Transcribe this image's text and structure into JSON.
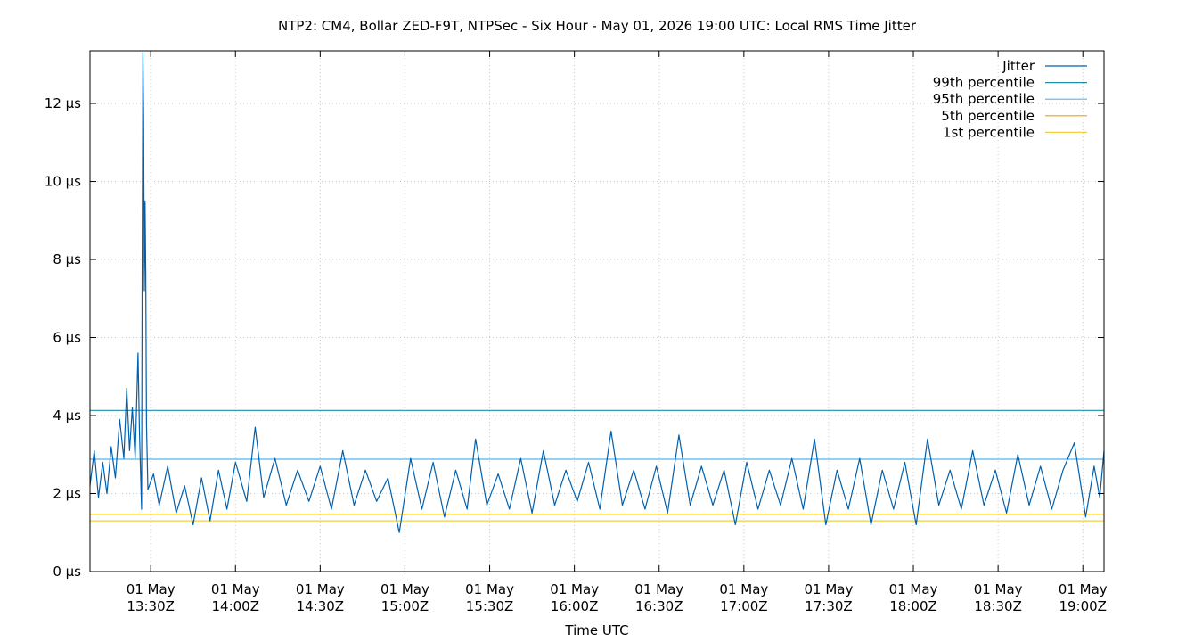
{
  "chart_data": {
    "type": "line",
    "title": "NTP2: CM4, Bollar ZED-F9T, NTPSec - Six Hour - May 01, 2026 19:00 UTC: Local RMS Time Jitter",
    "xlabel": "Time UTC",
    "ylabel": "",
    "x_range": [
      "2026-05-01T13:08:30Z",
      "2026-05-01T19:07:30Z"
    ],
    "ylim": [
      0,
      13.35
    ],
    "y_ticks": [
      {
        "value": 0,
        "label": "0 µs"
      },
      {
        "value": 2,
        "label": "2 µs"
      },
      {
        "value": 4,
        "label": "4 µs"
      },
      {
        "value": 6,
        "label": "6 µs"
      },
      {
        "value": 8,
        "label": "8 µs"
      },
      {
        "value": 10,
        "label": "10 µs"
      },
      {
        "value": 12,
        "label": "12 µs"
      }
    ],
    "x_ticks": [
      {
        "time": "2026-05-01T13:30:00Z",
        "line1": "01 May",
        "line2": "13:30Z"
      },
      {
        "time": "2026-05-01T14:00:00Z",
        "line1": "01 May",
        "line2": "14:00Z"
      },
      {
        "time": "2026-05-01T14:30:00Z",
        "line1": "01 May",
        "line2": "14:30Z"
      },
      {
        "time": "2026-05-01T15:00:00Z",
        "line1": "01 May",
        "line2": "15:00Z"
      },
      {
        "time": "2026-05-01T15:30:00Z",
        "line1": "01 May",
        "line2": "15:30Z"
      },
      {
        "time": "2026-05-01T16:00:00Z",
        "line1": "01 May",
        "line2": "16:00Z"
      },
      {
        "time": "2026-05-01T16:30:00Z",
        "line1": "01 May",
        "line2": "16:30Z"
      },
      {
        "time": "2026-05-01T17:00:00Z",
        "line1": "01 May",
        "line2": "17:00Z"
      },
      {
        "time": "2026-05-01T17:30:00Z",
        "line1": "01 May",
        "line2": "17:30Z"
      },
      {
        "time": "2026-05-01T18:00:00Z",
        "line1": "01 May",
        "line2": "18:00Z"
      },
      {
        "time": "2026-05-01T18:30:00Z",
        "line1": "01 May",
        "line2": "18:30Z"
      },
      {
        "time": "2026-05-01T19:00:00Z",
        "line1": "01 May",
        "line2": "19:00Z"
      }
    ],
    "grid": true,
    "legend_position": "top-right",
    "series": [
      {
        "name": "Jitter",
        "color": "#0060ad",
        "points": [
          {
            "time": "2026-05-01T13:08:30Z",
            "value": 2.2
          },
          {
            "time": "2026-05-01T13:10:00Z",
            "value": 3.1
          },
          {
            "time": "2026-05-01T13:11:30Z",
            "value": 1.9
          },
          {
            "time": "2026-05-01T13:13:00Z",
            "value": 2.8
          },
          {
            "time": "2026-05-01T13:14:30Z",
            "value": 2.0
          },
          {
            "time": "2026-05-01T13:16:00Z",
            "value": 3.2
          },
          {
            "time": "2026-05-01T13:17:30Z",
            "value": 2.4
          },
          {
            "time": "2026-05-01T13:19:00Z",
            "value": 3.9
          },
          {
            "time": "2026-05-01T13:20:30Z",
            "value": 2.9
          },
          {
            "time": "2026-05-01T13:21:30Z",
            "value": 4.7
          },
          {
            "time": "2026-05-01T13:22:30Z",
            "value": 3.1
          },
          {
            "time": "2026-05-01T13:23:30Z",
            "value": 4.2
          },
          {
            "time": "2026-05-01T13:24:30Z",
            "value": 2.9
          },
          {
            "time": "2026-05-01T13:25:30Z",
            "value": 5.6
          },
          {
            "time": "2026-05-01T13:26:00Z",
            "value": 3.6
          },
          {
            "time": "2026-05-01T13:26:45Z",
            "value": 1.6
          },
          {
            "time": "2026-05-01T13:27:00Z",
            "value": 8.0
          },
          {
            "time": "2026-05-01T13:27:15Z",
            "value": 13.3
          },
          {
            "time": "2026-05-01T13:27:30Z",
            "value": 11.6
          },
          {
            "time": "2026-05-01T13:27:45Z",
            "value": 7.2
          },
          {
            "time": "2026-05-01T13:28:00Z",
            "value": 9.5
          },
          {
            "time": "2026-05-01T13:28:15Z",
            "value": 7.6
          },
          {
            "time": "2026-05-01T13:28:30Z",
            "value": 3.8
          },
          {
            "time": "2026-05-01T13:29:00Z",
            "value": 2.1
          },
          {
            "time": "2026-05-01T13:31:00Z",
            "value": 2.5
          },
          {
            "time": "2026-05-01T13:33:00Z",
            "value": 1.7
          },
          {
            "time": "2026-05-01T13:36:00Z",
            "value": 2.7
          },
          {
            "time": "2026-05-01T13:39:00Z",
            "value": 1.5
          },
          {
            "time": "2026-05-01T13:42:00Z",
            "value": 2.2
          },
          {
            "time": "2026-05-01T13:45:00Z",
            "value": 1.2
          },
          {
            "time": "2026-05-01T13:48:00Z",
            "value": 2.4
          },
          {
            "time": "2026-05-01T13:51:00Z",
            "value": 1.3
          },
          {
            "time": "2026-05-01T13:54:00Z",
            "value": 2.6
          },
          {
            "time": "2026-05-01T13:57:00Z",
            "value": 1.6
          },
          {
            "time": "2026-05-01T14:00:00Z",
            "value": 2.8
          },
          {
            "time": "2026-05-01T14:04:00Z",
            "value": 1.8
          },
          {
            "time": "2026-05-01T14:07:00Z",
            "value": 3.7
          },
          {
            "time": "2026-05-01T14:10:00Z",
            "value": 1.9
          },
          {
            "time": "2026-05-01T14:14:00Z",
            "value": 2.9
          },
          {
            "time": "2026-05-01T14:18:00Z",
            "value": 1.7
          },
          {
            "time": "2026-05-01T14:22:00Z",
            "value": 2.6
          },
          {
            "time": "2026-05-01T14:26:00Z",
            "value": 1.8
          },
          {
            "time": "2026-05-01T14:30:00Z",
            "value": 2.7
          },
          {
            "time": "2026-05-01T14:34:00Z",
            "value": 1.6
          },
          {
            "time": "2026-05-01T14:38:00Z",
            "value": 3.1
          },
          {
            "time": "2026-05-01T14:42:00Z",
            "value": 1.7
          },
          {
            "time": "2026-05-01T14:46:00Z",
            "value": 2.6
          },
          {
            "time": "2026-05-01T14:50:00Z",
            "value": 1.8
          },
          {
            "time": "2026-05-01T14:54:00Z",
            "value": 2.4
          },
          {
            "time": "2026-05-01T14:58:00Z",
            "value": 1.0
          },
          {
            "time": "2026-05-01T15:02:00Z",
            "value": 2.9
          },
          {
            "time": "2026-05-01T15:06:00Z",
            "value": 1.6
          },
          {
            "time": "2026-05-01T15:10:00Z",
            "value": 2.8
          },
          {
            "time": "2026-05-01T15:14:00Z",
            "value": 1.4
          },
          {
            "time": "2026-05-01T15:18:00Z",
            "value": 2.6
          },
          {
            "time": "2026-05-01T15:22:00Z",
            "value": 1.6
          },
          {
            "time": "2026-05-01T15:25:00Z",
            "value": 3.4
          },
          {
            "time": "2026-05-01T15:29:00Z",
            "value": 1.7
          },
          {
            "time": "2026-05-01T15:33:00Z",
            "value": 2.5
          },
          {
            "time": "2026-05-01T15:37:00Z",
            "value": 1.6
          },
          {
            "time": "2026-05-01T15:41:00Z",
            "value": 2.9
          },
          {
            "time": "2026-05-01T15:45:00Z",
            "value": 1.5
          },
          {
            "time": "2026-05-01T15:49:00Z",
            "value": 3.1
          },
          {
            "time": "2026-05-01T15:53:00Z",
            "value": 1.7
          },
          {
            "time": "2026-05-01T15:57:00Z",
            "value": 2.6
          },
          {
            "time": "2026-05-01T16:01:00Z",
            "value": 1.8
          },
          {
            "time": "2026-05-01T16:05:00Z",
            "value": 2.8
          },
          {
            "time": "2026-05-01T16:09:00Z",
            "value": 1.6
          },
          {
            "time": "2026-05-01T16:13:00Z",
            "value": 3.6
          },
          {
            "time": "2026-05-01T16:17:00Z",
            "value": 1.7
          },
          {
            "time": "2026-05-01T16:21:00Z",
            "value": 2.6
          },
          {
            "time": "2026-05-01T16:25:00Z",
            "value": 1.6
          },
          {
            "time": "2026-05-01T16:29:00Z",
            "value": 2.7
          },
          {
            "time": "2026-05-01T16:33:00Z",
            "value": 1.5
          },
          {
            "time": "2026-05-01T16:37:00Z",
            "value": 3.5
          },
          {
            "time": "2026-05-01T16:41:00Z",
            "value": 1.7
          },
          {
            "time": "2026-05-01T16:45:00Z",
            "value": 2.7
          },
          {
            "time": "2026-05-01T16:49:00Z",
            "value": 1.7
          },
          {
            "time": "2026-05-01T16:53:00Z",
            "value": 2.6
          },
          {
            "time": "2026-05-01T16:57:00Z",
            "value": 1.2
          },
          {
            "time": "2026-05-01T17:01:00Z",
            "value": 2.8
          },
          {
            "time": "2026-05-01T17:05:00Z",
            "value": 1.6
          },
          {
            "time": "2026-05-01T17:09:00Z",
            "value": 2.6
          },
          {
            "time": "2026-05-01T17:13:00Z",
            "value": 1.7
          },
          {
            "time": "2026-05-01T17:17:00Z",
            "value": 2.9
          },
          {
            "time": "2026-05-01T17:21:00Z",
            "value": 1.6
          },
          {
            "time": "2026-05-01T17:25:00Z",
            "value": 3.4
          },
          {
            "time": "2026-05-01T17:29:00Z",
            "value": 1.2
          },
          {
            "time": "2026-05-01T17:33:00Z",
            "value": 2.6
          },
          {
            "time": "2026-05-01T17:37:00Z",
            "value": 1.6
          },
          {
            "time": "2026-05-01T17:41:00Z",
            "value": 2.9
          },
          {
            "time": "2026-05-01T17:45:00Z",
            "value": 1.2
          },
          {
            "time": "2026-05-01T17:49:00Z",
            "value": 2.6
          },
          {
            "time": "2026-05-01T17:53:00Z",
            "value": 1.6
          },
          {
            "time": "2026-05-01T17:57:00Z",
            "value": 2.8
          },
          {
            "time": "2026-05-01T18:01:00Z",
            "value": 1.2
          },
          {
            "time": "2026-05-01T18:05:00Z",
            "value": 3.4
          },
          {
            "time": "2026-05-01T18:09:00Z",
            "value": 1.7
          },
          {
            "time": "2026-05-01T18:13:00Z",
            "value": 2.6
          },
          {
            "time": "2026-05-01T18:17:00Z",
            "value": 1.6
          },
          {
            "time": "2026-05-01T18:21:00Z",
            "value": 3.1
          },
          {
            "time": "2026-05-01T18:25:00Z",
            "value": 1.7
          },
          {
            "time": "2026-05-01T18:29:00Z",
            "value": 2.6
          },
          {
            "time": "2026-05-01T18:33:00Z",
            "value": 1.5
          },
          {
            "time": "2026-05-01T18:37:00Z",
            "value": 3.0
          },
          {
            "time": "2026-05-01T18:41:00Z",
            "value": 1.7
          },
          {
            "time": "2026-05-01T18:45:00Z",
            "value": 2.7
          },
          {
            "time": "2026-05-01T18:49:00Z",
            "value": 1.6
          },
          {
            "time": "2026-05-01T18:53:00Z",
            "value": 2.6
          },
          {
            "time": "2026-05-01T18:57:00Z",
            "value": 3.3
          },
          {
            "time": "2026-05-01T19:01:00Z",
            "value": 1.4
          },
          {
            "time": "2026-05-01T19:04:00Z",
            "value": 2.7
          },
          {
            "time": "2026-05-01T19:06:00Z",
            "value": 1.9
          },
          {
            "time": "2026-05-01T19:07:30Z",
            "value": 3.1
          }
        ]
      },
      {
        "name": "99th percentile",
        "color": "#1f8fa8",
        "value": 4.13
      },
      {
        "name": "95th percentile",
        "color": "#56b4e9",
        "value": 2.88
      },
      {
        "name": "5th percentile",
        "color": "#e6a700",
        "value": 1.47
      },
      {
        "name": "1st percentile",
        "color": "#f0d23c",
        "value": 1.3
      }
    ]
  }
}
